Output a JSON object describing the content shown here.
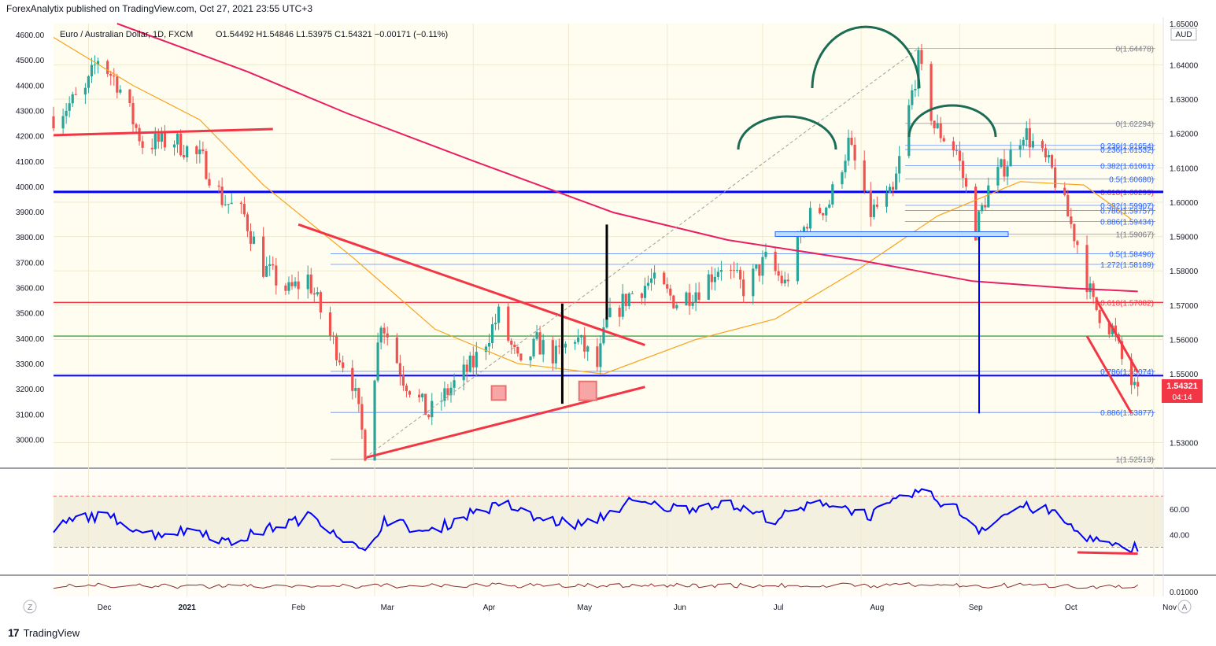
{
  "publisher_line": "ForexAnalytix published on TradingView.com, Oct 27, 2021 23:55 UTC+3",
  "footer": {
    "brand": "TradingView",
    "logo": "tradingview-logo-icon"
  },
  "header": {
    "symbol": "Euro / Australian Dollar, 1D, FXCM",
    "ohlc": "O1.54492  H1.54846  L1.53975  C1.54321  −0.00171 (−0.11%)"
  },
  "price_axis": {
    "currency": "AUD",
    "current_price": "1.54321",
    "countdown": "04:14",
    "tick_labels": [
      "1.65000",
      "1.64000",
      "1.63000",
      "1.62000",
      "1.61000",
      "1.60000",
      "1.59000",
      "1.58000",
      "1.57000",
      "1.56000",
      "1.55000",
      "1.53000"
    ]
  },
  "left_axis": {
    "tick_labels": [
      "4600.00",
      "4500.00",
      "4400.00",
      "4300.00",
      "4200.00",
      "4100.00",
      "4000.00",
      "3900.00",
      "3800.00",
      "3700.00",
      "3600.00",
      "3500.00",
      "3400.00",
      "3300.00",
      "3200.00",
      "3100.00",
      "3000.00"
    ]
  },
  "time_axis": {
    "labels": [
      "Dec",
      "2021",
      "Feb",
      "Mar",
      "Apr",
      "May",
      "Jun",
      "Jul",
      "Aug",
      "Sep",
      "Oct",
      "Nov"
    ],
    "left_button": "Z",
    "right_button": "A"
  },
  "rsi_panel": {
    "tick_labels": [
      "60.00",
      "40.00"
    ]
  },
  "osc_panel": {
    "tick_labels": [
      "0.01000"
    ]
  },
  "fib_levels": [
    {
      "label": "0(1.64478)",
      "price": 1.64478,
      "color": "#787b86"
    },
    {
      "label": "0(1.62294)",
      "price": 1.62294,
      "color": "#787b86"
    },
    {
      "label": "0.236(1.61654)",
      "price": 1.61654,
      "color": "#2962ff"
    },
    {
      "label": "0.236(1.61532)",
      "price": 1.61532,
      "color": "#2962ff"
    },
    {
      "label": "0.382(1.61061)",
      "price": 1.61061,
      "color": "#2962ff"
    },
    {
      "label": "0.5(1.60680)",
      "price": 1.6068,
      "color": "#2962ff"
    },
    {
      "label": "0.618(1.60299)",
      "price": 1.60299,
      "color": "#f23645"
    },
    {
      "label": "0.382(1.59907)",
      "price": 1.59907,
      "color": "#2962ff"
    },
    {
      "label": "0.786(1.59757)",
      "price": 1.59757,
      "color": "#2962ff"
    },
    {
      "label": "0.886(1.59434)",
      "price": 1.59434,
      "color": "#2962ff"
    },
    {
      "label": "1(1.59067)",
      "price": 1.59067,
      "color": "#787b86"
    },
    {
      "label": "0.5(1.58496)",
      "price": 1.58496,
      "color": "#2962ff"
    },
    {
      "label": "1.272(1.58189)",
      "price": 1.58189,
      "color": "#2962ff"
    },
    {
      "label": "0.618(1.57082)",
      "price": 1.57082,
      "color": "#f23645"
    },
    {
      "label": "0.786(1.55074)",
      "price": 1.55074,
      "color": "#2962ff"
    },
    {
      "label": "0.886(1.53877)",
      "price": 1.53877,
      "color": "#2962ff"
    },
    {
      "label": "1(1.52513)",
      "price": 1.52513,
      "color": "#787b86"
    }
  ],
  "chart_data": {
    "type": "candlestick",
    "title": "Euro / Australian Dollar, 1D, FXCM",
    "ylim": [
      1.523,
      1.652
    ],
    "xlim": [
      "2020-11-20",
      "2021-11-04"
    ],
    "last_close": 1.54321,
    "anchors": [
      [
        "2020-11-20",
        1.625
      ],
      [
        "2020-11-30",
        1.632
      ],
      [
        "2020-12-04",
        1.642
      ],
      [
        "2020-12-10",
        1.635
      ],
      [
        "2020-12-18",
        1.617
      ],
      [
        "2020-12-28",
        1.618
      ],
      [
        "2021-01-06",
        1.612
      ],
      [
        "2021-01-12",
        1.601
      ],
      [
        "2021-01-19",
        1.596
      ],
      [
        "2021-01-25",
        1.581
      ],
      [
        "2021-02-02",
        1.574
      ],
      [
        "2021-02-08",
        1.578
      ],
      [
        "2021-02-15",
        1.561
      ],
      [
        "2021-02-22",
        1.548
      ],
      [
        "2021-02-26",
        1.528
      ],
      [
        "2021-03-03",
        1.566
      ],
      [
        "2021-03-10",
        1.549
      ],
      [
        "2021-03-18",
        1.538
      ],
      [
        "2021-03-25",
        1.546
      ],
      [
        "2021-04-01",
        1.553
      ],
      [
        "2021-04-09",
        1.567
      ],
      [
        "2021-04-16",
        1.551
      ],
      [
        "2021-04-21",
        1.559
      ],
      [
        "2021-04-27",
        1.555
      ],
      [
        "2021-05-03",
        1.561
      ],
      [
        "2021-05-10",
        1.552
      ],
      [
        "2021-05-13",
        1.565
      ],
      [
        "2021-05-20",
        1.573
      ],
      [
        "2021-05-27",
        1.577
      ],
      [
        "2021-06-04",
        1.571
      ],
      [
        "2021-06-11",
        1.575
      ],
      [
        "2021-06-18",
        1.582
      ],
      [
        "2021-06-25",
        1.575
      ],
      [
        "2021-07-02",
        1.583
      ],
      [
        "2021-07-08",
        1.576
      ],
      [
        "2021-07-15",
        1.595
      ],
      [
        "2021-07-22",
        1.6
      ],
      [
        "2021-07-28",
        1.617
      ],
      [
        "2021-08-04",
        1.597
      ],
      [
        "2021-08-11",
        1.602
      ],
      [
        "2021-08-16",
        1.627
      ],
      [
        "2021-08-19",
        1.641
      ],
      [
        "2021-08-24",
        1.622
      ],
      [
        "2021-08-31",
        1.615
      ],
      [
        "2021-09-06",
        1.592
      ],
      [
        "2021-09-10",
        1.604
      ],
      [
        "2021-09-16",
        1.612
      ],
      [
        "2021-09-21",
        1.621
      ],
      [
        "2021-09-27",
        1.613
      ],
      [
        "2021-09-30",
        1.609
      ],
      [
        "2021-10-05",
        1.596
      ],
      [
        "2021-10-08",
        1.588
      ],
      [
        "2021-10-13",
        1.57
      ],
      [
        "2021-10-19",
        1.563
      ],
      [
        "2021-10-22",
        1.554
      ],
      [
        "2021-10-27",
        1.543
      ]
    ],
    "series": [
      {
        "name": "",
        "kind": "sma-50",
        "color": "#f7a21b",
        "points": [
          [
            "2020-11-20",
            1.648
          ],
          [
            "2020-12-15",
            1.634
          ],
          [
            "2021-01-05",
            1.624
          ],
          [
            "2021-01-25",
            1.605
          ],
          [
            "2021-02-22",
            1.584
          ],
          [
            "2021-03-20",
            1.563
          ],
          [
            "2021-04-15",
            1.553
          ],
          [
            "2021-05-12",
            1.55
          ],
          [
            "2021-06-10",
            1.56
          ],
          [
            "2021-07-05",
            1.566
          ],
          [
            "2021-08-01",
            1.581
          ],
          [
            "2021-08-25",
            1.596
          ],
          [
            "2021-09-20",
            1.606
          ],
          [
            "2021-10-10",
            1.605
          ],
          [
            "2021-10-25",
            1.595
          ]
        ]
      },
      {
        "name": "",
        "kind": "sma-200",
        "color": "#e91e63",
        "points": [
          [
            "2020-12-10",
            1.652
          ],
          [
            "2021-01-20",
            1.638
          ],
          [
            "2021-02-20",
            1.626
          ],
          [
            "2021-04-01",
            1.612
          ],
          [
            "2021-05-15",
            1.597
          ],
          [
            "2021-06-20",
            1.589
          ],
          [
            "2021-08-01",
            1.583
          ],
          [
            "2021-09-05",
            1.577
          ],
          [
            "2021-10-05",
            1.575
          ],
          [
            "2021-10-27",
            1.574
          ]
        ]
      }
    ],
    "horizontal_lines": [
      {
        "name": "major-support-resistance",
        "price": 1.603,
        "color": "#0000ff"
      },
      {
        "name": "red-level",
        "price": 1.5708,
        "color": "#f23645"
      },
      {
        "name": "green-level",
        "price": 1.561,
        "color": "#4caf50"
      },
      {
        "name": "blue-level",
        "price": 1.5495,
        "color": "#0000ff"
      }
    ],
    "trendlines": [
      {
        "name": "dec-resistance",
        "color": "#f23645",
        "points": [
          [
            "2020-11-20",
            1.6195
          ],
          [
            "2021-01-28",
            1.6213
          ]
        ]
      },
      {
        "name": "wedge-upper",
        "color": "#f23645",
        "points": [
          [
            "2021-02-05",
            1.5935
          ],
          [
            "2021-05-25",
            1.5584
          ]
        ]
      },
      {
        "name": "wedge-lower",
        "color": "#f23645",
        "points": [
          [
            "2021-02-26",
            1.5256
          ],
          [
            "2021-05-25",
            1.5462
          ]
        ]
      },
      {
        "name": "channel-upper",
        "color": "#f23645",
        "points": [
          [
            "2021-10-14",
            1.5715
          ],
          [
            "2021-10-27",
            1.5505
          ]
        ]
      },
      {
        "name": "channel-lower",
        "color": "#f23645",
        "points": [
          [
            "2021-10-11",
            1.561
          ],
          [
            "2021-10-25",
            1.5385
          ]
        ]
      },
      {
        "name": "fib-diagonal",
        "color": "#9e9e9e",
        "points": [
          [
            "2021-02-26",
            1.5256
          ],
          [
            "2021-08-19",
            1.6448
          ]
        ]
      }
    ],
    "rsi": {
      "ylim": [
        10,
        90
      ],
      "overbought": 70,
      "oversold": 30,
      "anchors": [
        [
          "2020-11-20",
          44
        ],
        [
          "2020-11-30",
          55
        ],
        [
          "2020-12-10",
          52
        ],
        [
          "2020-12-20",
          40
        ],
        [
          "2021-01-05",
          44
        ],
        [
          "2021-01-14",
          33
        ],
        [
          "2021-01-26",
          44
        ],
        [
          "2021-02-10",
          55
        ],
        [
          "2021-02-26",
          24
        ],
        [
          "2021-03-04",
          52
        ],
        [
          "2021-03-18",
          41
        ],
        [
          "2021-04-01",
          58
        ],
        [
          "2021-04-12",
          63
        ],
        [
          "2021-04-20",
          53
        ],
        [
          "2021-05-06",
          47
        ],
        [
          "2021-05-20",
          65
        ],
        [
          "2021-06-05",
          60
        ],
        [
          "2021-06-18",
          65
        ],
        [
          "2021-07-05",
          52
        ],
        [
          "2021-07-20",
          66
        ],
        [
          "2021-08-04",
          55
        ],
        [
          "2021-08-19",
          74
        ],
        [
          "2021-08-31",
          60
        ],
        [
          "2021-09-07",
          44
        ],
        [
          "2021-09-20",
          62
        ],
        [
          "2021-09-30",
          58
        ],
        [
          "2021-10-08",
          42
        ],
        [
          "2021-10-15",
          34
        ],
        [
          "2021-10-22",
          28
        ],
        [
          "2021-10-27",
          31
        ]
      ]
    }
  }
}
